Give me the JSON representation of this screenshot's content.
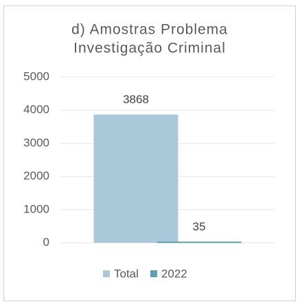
{
  "chart_data": {
    "type": "bar",
    "title": [
      "d) Amostras Problema",
      "Investigação Criminal"
    ],
    "categories": [
      null
    ],
    "series": [
      {
        "name": "Total",
        "color": "#a9c8da",
        "values": [
          3868
        ]
      },
      {
        "name": "2022",
        "color": "#5e9cb2",
        "values": [
          35
        ]
      }
    ],
    "ylim": [
      0,
      5000
    ],
    "yticks": [
      0,
      1000,
      2000,
      3000,
      4000,
      5000
    ],
    "grid": true,
    "legend": "bottom",
    "data_labels": true
  }
}
